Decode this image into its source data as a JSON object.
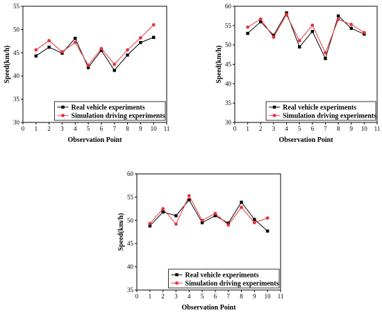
{
  "chart_data": [
    {
      "type": "line",
      "title": "",
      "xlabel": "Observation Point",
      "ylabel": "Speed(km/h)",
      "xlim": [
        0,
        11
      ],
      "ylim": [
        30,
        55
      ],
      "xticks": [
        0,
        1,
        2,
        3,
        4,
        5,
        6,
        7,
        8,
        9,
        10,
        11
      ],
      "yticks": [
        30,
        35,
        40,
        45,
        50,
        55
      ],
      "x": [
        1,
        2,
        3,
        4,
        5,
        6,
        7,
        8,
        9,
        10
      ],
      "legend_position": "bottom-right",
      "series": [
        {
          "name": "Real vehicle experiments",
          "color": "#000000",
          "marker": "square",
          "values": [
            44.3,
            46.2,
            44.9,
            48.1,
            41.8,
            45.5,
            41.2,
            44.5,
            47.2,
            48.3
          ]
        },
        {
          "name": "Simulation driving experiments",
          "color": "#e8333a",
          "marker": "circle",
          "values": [
            45.6,
            47.6,
            45.2,
            47.2,
            42.3,
            45.9,
            42.5,
            45.6,
            48.2,
            51.0
          ]
        }
      ]
    },
    {
      "type": "line",
      "title": "",
      "xlabel": "Observation Point",
      "ylabel": "Speed(km/h)",
      "xlim": [
        0,
        11
      ],
      "ylim": [
        30,
        60
      ],
      "xticks": [
        0,
        1,
        2,
        3,
        4,
        5,
        6,
        7,
        8,
        9,
        10,
        11
      ],
      "yticks": [
        30,
        35,
        40,
        45,
        50,
        55,
        60
      ],
      "x": [
        1,
        2,
        3,
        4,
        5,
        6,
        7,
        8,
        9,
        10
      ],
      "legend_position": "bottom-right",
      "series": [
        {
          "name": "Real vehicle experiments",
          "color": "#000000",
          "marker": "square",
          "values": [
            53.0,
            56.0,
            52.5,
            58.3,
            49.5,
            53.5,
            46.5,
            57.5,
            54.3,
            52.8
          ]
        },
        {
          "name": "Simulation driving experiments",
          "color": "#e8333a",
          "marker": "circle",
          "values": [
            54.6,
            56.7,
            52.0,
            57.8,
            51.1,
            55.1,
            48.0,
            56.6,
            55.3,
            53.2
          ]
        }
      ]
    },
    {
      "type": "line",
      "title": "",
      "xlabel": "Observation Point",
      "ylabel": "Speed(km/h)",
      "xlim": [
        0,
        11
      ],
      "ylim": [
        35,
        60
      ],
      "xticks": [
        0,
        1,
        2,
        3,
        4,
        5,
        6,
        7,
        8,
        9,
        10,
        11
      ],
      "yticks": [
        35,
        40,
        45,
        50,
        55,
        60
      ],
      "x": [
        1,
        2,
        3,
        4,
        5,
        6,
        7,
        8,
        9,
        10
      ],
      "legend_position": "bottom-right",
      "series": [
        {
          "name": "Real vehicle experiments",
          "color": "#000000",
          "marker": "square",
          "values": [
            48.8,
            51.8,
            51.0,
            54.4,
            49.5,
            51.0,
            49.4,
            53.9,
            50.2,
            47.7
          ]
        },
        {
          "name": "Simulation driving experiments",
          "color": "#e8333a",
          "marker": "circle",
          "values": [
            49.3,
            52.5,
            49.2,
            55.3,
            50.0,
            51.5,
            49.0,
            52.8,
            49.5,
            50.5
          ]
        }
      ]
    }
  ]
}
